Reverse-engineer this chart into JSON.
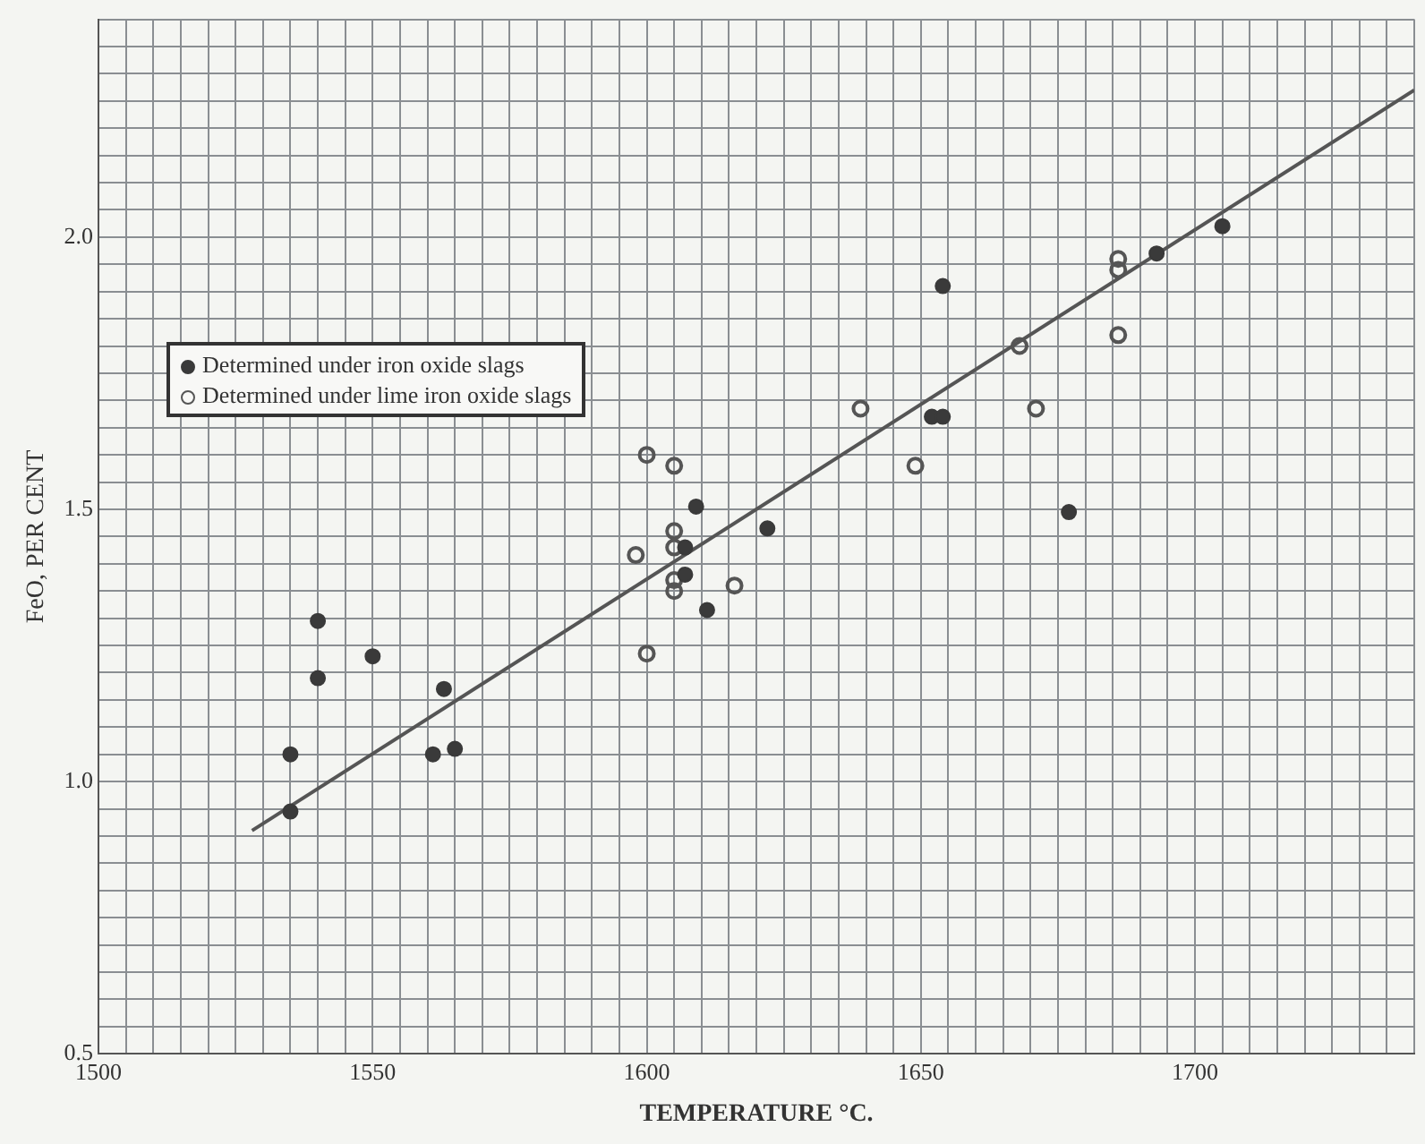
{
  "chart_data": {
    "type": "scatter",
    "xlabel": "TEMPERATURE °C.",
    "ylabel": "FeO, PER CENT",
    "xlim": [
      1500,
      1740
    ],
    "ylim": [
      0.5,
      2.4
    ],
    "xticks": [
      1500,
      {
        "value": 1505,
        "label": null
      },
      {
        "value": 1510,
        "label": null
      },
      {
        "value": 1515,
        "label": null
      },
      {
        "value": 1520,
        "label": null
      },
      {
        "value": 1525,
        "label": null
      },
      {
        "value": 1530,
        "label": null
      },
      {
        "value": 1535,
        "label": null
      },
      {
        "value": 1540,
        "label": null
      },
      {
        "value": 1545,
        "label": null
      },
      1550,
      {
        "value": 1555,
        "label": null
      },
      {
        "value": 1560,
        "label": null
      },
      {
        "value": 1565,
        "label": null
      },
      {
        "value": 1570,
        "label": null
      },
      {
        "value": 1575,
        "label": null
      },
      {
        "value": 1580,
        "label": null
      },
      {
        "value": 1585,
        "label": null
      },
      {
        "value": 1590,
        "label": null
      },
      {
        "value": 1595,
        "label": null
      },
      1600,
      {
        "value": 1605,
        "label": null
      },
      {
        "value": 1610,
        "label": null
      },
      {
        "value": 1615,
        "label": null
      },
      {
        "value": 1620,
        "label": null
      },
      {
        "value": 1625,
        "label": null
      },
      {
        "value": 1630,
        "label": null
      },
      {
        "value": 1635,
        "label": null
      },
      {
        "value": 1640,
        "label": null
      },
      {
        "value": 1645,
        "label": null
      },
      1650,
      {
        "value": 1655,
        "label": null
      },
      {
        "value": 1660,
        "label": null
      },
      {
        "value": 1665,
        "label": null
      },
      {
        "value": 1670,
        "label": null
      },
      {
        "value": 1675,
        "label": null
      },
      {
        "value": 1680,
        "label": null
      },
      {
        "value": 1685,
        "label": null
      },
      {
        "value": 1690,
        "label": null
      },
      {
        "value": 1695,
        "label": null
      },
      1700,
      {
        "value": 1705,
        "label": null
      },
      {
        "value": 1710,
        "label": null
      },
      {
        "value": 1715,
        "label": null
      },
      {
        "value": 1720,
        "label": null
      },
      {
        "value": 1725,
        "label": null
      },
      {
        "value": 1730,
        "label": null
      },
      {
        "value": 1735,
        "label": null
      },
      {
        "value": 1740,
        "label": null
      }
    ],
    "yticks": [
      {
        "value": 0.5,
        "label": "0.5"
      },
      {
        "value": 0.55,
        "label": null
      },
      {
        "value": 0.6,
        "label": null
      },
      {
        "value": 0.65,
        "label": null
      },
      {
        "value": 0.7,
        "label": null
      },
      {
        "value": 0.75,
        "label": null
      },
      {
        "value": 0.8,
        "label": null
      },
      {
        "value": 0.85,
        "label": null
      },
      {
        "value": 0.9,
        "label": null
      },
      {
        "value": 0.95,
        "label": null
      },
      {
        "value": 1,
        "label": "1.0"
      },
      {
        "value": 1.05,
        "label": null
      },
      {
        "value": 1.1,
        "label": null
      },
      {
        "value": 1.15,
        "label": null
      },
      {
        "value": 1.2,
        "label": null
      },
      {
        "value": 1.25,
        "label": null
      },
      {
        "value": 1.3,
        "label": null
      },
      {
        "value": 1.35,
        "label": null
      },
      {
        "value": 1.4,
        "label": null
      },
      {
        "value": 1.45,
        "label": null
      },
      {
        "value": 1.5,
        "label": "1.5"
      },
      {
        "value": 1.55,
        "label": null
      },
      {
        "value": 1.6,
        "label": null
      },
      {
        "value": 1.65,
        "label": null
      },
      {
        "value": 1.7,
        "label": null
      },
      {
        "value": 1.75,
        "label": null
      },
      {
        "value": 1.8,
        "label": null
      },
      {
        "value": 1.85,
        "label": null
      },
      {
        "value": 1.9,
        "label": null
      },
      {
        "value": 1.95,
        "label": null
      },
      {
        "value": 2,
        "label": "2.0"
      },
      {
        "value": 2.05,
        "label": null
      },
      {
        "value": 2.1,
        "label": null
      },
      {
        "value": 2.15,
        "label": null
      },
      {
        "value": 2.2,
        "label": null
      },
      {
        "value": 2.25,
        "label": null
      },
      {
        "value": 2.3,
        "label": null
      },
      {
        "value": 2.35,
        "label": null
      },
      {
        "value": 2.4,
        "label": null
      }
    ],
    "grid": true,
    "legend": "top left",
    "marker": "circle",
    "series": [
      {
        "name": "Determined under iron oxide slags",
        "color": "#3a3a3a",
        "x": [
          1535,
          1535,
          1540,
          1540,
          1550,
          1561,
          1563,
          1565,
          1607,
          1607,
          1609,
          1611,
          1622,
          1652,
          1654,
          1654,
          1677,
          1693,
          1705
        ],
        "values": [
          0.945,
          1.05,
          1.295,
          1.19,
          1.23,
          1.05,
          1.17,
          1.06,
          1.43,
          1.38,
          1.505,
          1.315,
          1.465,
          1.67,
          1.67,
          1.91,
          1.495,
          1.97,
          2.02
        ]
      },
      {
        "name": "Determined under lime iron oxide slags",
        "color": "#555555",
        "x": [
          1598,
          1600,
          1600,
          1605,
          1605,
          1605,
          1605,
          1605,
          1616,
          1639,
          1649,
          1668,
          1671,
          1686,
          1686,
          1686
        ],
        "values": [
          1.416,
          1.6,
          1.235,
          1.58,
          1.46,
          1.43,
          1.37,
          1.35,
          1.36,
          1.685,
          1.58,
          1.8,
          1.685,
          1.96,
          1.94,
          1.82
        ]
      },
      {
        "type": "line",
        "color": "#555555",
        "marker": "none",
        "x": [
          1528,
          1740
        ],
        "values": [
          0.91,
          2.27
        ]
      }
    ]
  }
}
